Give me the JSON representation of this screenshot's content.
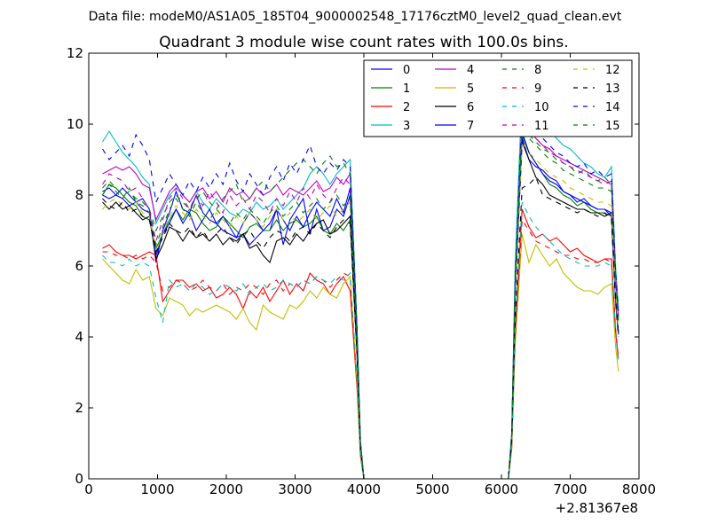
{
  "suptitle": "Data file: modeM0/AS1A05_185T04_9000002548_17176cztM0_level2_quad_clean.evt",
  "chart_data": {
    "type": "line",
    "title": "Quadrant 3 module wise count rates with 100.0s bins.",
    "xlabel": "",
    "ylabel": "",
    "x_offset_label": "+2.81367e8",
    "xlim": [
      0,
      8000
    ],
    "ylim": [
      0,
      12
    ],
    "xticks": [
      "0",
      "1000",
      "2000",
      "3000",
      "4000",
      "5000",
      "6000",
      "7000",
      "8000"
    ],
    "yticks": [
      "0",
      "2",
      "4",
      "6",
      "8",
      "10",
      "12"
    ],
    "grid": false,
    "legend_position": "top-right",
    "legend_columns": 4,
    "segments": [
      {
        "x_start": 200,
        "x_end": 3800
      },
      {
        "x_start": 6300,
        "x_end": 7600
      }
    ],
    "series": [
      {
        "name": "0",
        "color": "#0000ff",
        "dash": "solid",
        "seg1": [
          8.1,
          8.2,
          8.0,
          8.2,
          8.0,
          7.8,
          7.9,
          7.6,
          6.1,
          7.0,
          7.5,
          8.1,
          7.6,
          7.5,
          8.0,
          7.5,
          7.3,
          7.2,
          7.0,
          6.9,
          6.8,
          6.9,
          6.6,
          6.8,
          7.0,
          7.0,
          7.6,
          6.6,
          7.3,
          7.6,
          7.9,
          6.9,
          7.6,
          7.0,
          7.1,
          7.6,
          7.4,
          8.0
        ],
        "seg2": [
          9.5,
          9.0,
          8.8,
          8.7,
          8.5,
          8.4,
          8.1,
          8.0,
          7.8,
          7.9,
          7.7,
          7.6,
          7.6,
          7.4
        ]
      },
      {
        "name": "1",
        "color": "#008000",
        "dash": "solid",
        "seg1": [
          8.0,
          8.3,
          8.2,
          8.0,
          7.8,
          7.7,
          7.4,
          7.3,
          6.5,
          6.9,
          7.3,
          7.6,
          7.3,
          7.6,
          7.5,
          7.2,
          7.0,
          7.1,
          7.4,
          7.2,
          7.0,
          6.8,
          7.1,
          7.2,
          7.0,
          7.0,
          7.3,
          7.0,
          7.2,
          7.3,
          7.1,
          7.2,
          7.4,
          7.0,
          6.9,
          7.2,
          7.0,
          7.3
        ],
        "seg2": [
          9.8,
          9.2,
          8.9,
          8.6,
          8.3,
          8.2,
          8.0,
          7.9,
          7.7,
          7.8,
          7.6,
          7.5,
          7.5,
          7.4
        ]
      },
      {
        "name": "2",
        "color": "#ff0000",
        "dash": "solid",
        "seg1": [
          6.5,
          6.6,
          6.4,
          6.3,
          6.3,
          6.2,
          6.3,
          6.4,
          6.3,
          5.0,
          5.3,
          5.6,
          5.6,
          5.4,
          5.5,
          5.3,
          5.4,
          5.1,
          5.2,
          5.4,
          5.2,
          4.8,
          5.3,
          5.1,
          5.4,
          5.0,
          5.3,
          5.6,
          5.2,
          5.5,
          5.3,
          5.8,
          5.6,
          5.5,
          5.2,
          5.5,
          5.7,
          5.3
        ],
        "seg2": [
          7.6,
          7.1,
          6.8,
          6.9,
          6.7,
          6.8,
          6.6,
          6.4,
          6.5,
          6.3,
          6.2,
          6.1,
          6.2,
          6.2
        ]
      },
      {
        "name": "3",
        "color": "#00bfbf",
        "dash": "solid",
        "seg1": [
          9.5,
          9.8,
          9.5,
          9.2,
          9.0,
          8.8,
          8.5,
          8.3,
          7.2,
          7.6,
          8.0,
          8.2,
          8.0,
          7.8,
          8.1,
          7.8,
          7.6,
          7.9,
          7.7,
          7.5,
          7.4,
          7.6,
          7.5,
          7.8,
          7.6,
          7.7,
          7.9,
          7.6,
          7.8,
          8.0,
          8.2,
          8.6,
          8.8,
          8.6,
          8.3,
          8.6,
          8.8,
          9.0
        ],
        "seg2": [
          11.0,
          10.5,
          10.3,
          10.0,
          9.8,
          9.6,
          9.4,
          9.3,
          9.1,
          8.9,
          8.8,
          8.6,
          8.5,
          8.8
        ]
      },
      {
        "name": "4",
        "color": "#bf00bf",
        "dash": "solid",
        "seg1": [
          8.6,
          8.7,
          8.8,
          8.7,
          8.8,
          8.6,
          8.3,
          8.2,
          7.3,
          7.7,
          8.1,
          8.3,
          8.0,
          7.8,
          8.1,
          8.2,
          7.9,
          8.1,
          7.8,
          8.2,
          8.0,
          8.1,
          7.9,
          8.2,
          8.0,
          8.1,
          8.3,
          8.0,
          8.2,
          8.1,
          8.0,
          8.2,
          8.4,
          8.1,
          8.2,
          8.5,
          8.3,
          8.6
        ],
        "seg2": [
          10.2,
          9.8,
          9.6,
          9.4,
          9.3,
          9.1,
          9.0,
          8.9,
          8.8,
          8.7,
          8.6,
          8.5,
          8.4,
          8.3
        ]
      },
      {
        "name": "5",
        "color": "#bfbf00",
        "dash": "solid",
        "seg1": [
          6.2,
          6.0,
          5.8,
          5.6,
          5.5,
          5.9,
          5.6,
          5.7,
          4.8,
          4.6,
          5.1,
          5.0,
          4.9,
          4.6,
          4.8,
          4.7,
          4.8,
          4.9,
          4.8,
          4.7,
          4.5,
          4.8,
          4.4,
          4.2,
          4.9,
          4.7,
          4.6,
          4.5,
          4.9,
          4.8,
          5.0,
          5.3,
          5.1,
          5.4,
          5.2,
          5.1,
          5.5,
          5.7
        ],
        "seg2": [
          6.9,
          6.1,
          6.6,
          6.3,
          6.0,
          6.2,
          5.8,
          5.6,
          5.4,
          5.3,
          5.3,
          5.2,
          5.4,
          5.5
        ]
      },
      {
        "name": "6",
        "color": "#000000",
        "dash": "solid",
        "seg1": [
          7.8,
          7.6,
          7.8,
          7.6,
          7.7,
          7.5,
          7.3,
          7.4,
          6.2,
          6.6,
          7.1,
          7.0,
          6.7,
          7.0,
          6.8,
          6.9,
          6.7,
          6.9,
          6.6,
          6.8,
          6.7,
          6.9,
          6.5,
          6.6,
          6.3,
          6.1,
          6.7,
          6.8,
          6.6,
          6.9,
          6.7,
          7.0,
          7.2,
          7.3,
          6.9,
          7.0,
          7.2,
          7.4
        ],
        "seg2": [
          9.6,
          9.0,
          8.5,
          8.3,
          8.0,
          7.9,
          7.8,
          7.7,
          7.6,
          7.6,
          7.5,
          7.5,
          7.4,
          7.5
        ]
      },
      {
        "name": "7",
        "color": "#0000ff",
        "dash": "solid",
        "seg1": [
          8.0,
          7.9,
          8.0,
          7.9,
          7.7,
          7.8,
          7.6,
          7.5,
          6.3,
          6.9,
          7.2,
          7.6,
          7.2,
          7.5,
          7.0,
          7.3,
          7.6,
          7.2,
          7.4,
          7.1,
          6.8,
          7.2,
          7.5,
          7.3,
          7.0,
          7.2,
          7.6,
          7.3,
          7.0,
          7.4,
          7.1,
          7.5,
          7.8,
          7.6,
          7.4,
          7.9,
          7.5,
          8.2
        ],
        "seg2": [
          9.7,
          9.2,
          8.9,
          8.6,
          8.4,
          8.3,
          8.1,
          8.0,
          7.9,
          7.8,
          7.7,
          7.6,
          7.6,
          7.5
        ]
      },
      {
        "name": "8",
        "color": "#008000",
        "dash": "dashed",
        "seg1": [
          8.2,
          8.4,
          8.2,
          8.0,
          8.1,
          7.9,
          7.8,
          7.6,
          7.0,
          7.4,
          7.8,
          8.0,
          7.8,
          7.6,
          7.9,
          8.1,
          7.8,
          7.6,
          7.9,
          8.1,
          8.3,
          7.8,
          7.9,
          8.2,
          8.4,
          8.1,
          8.3,
          8.5,
          8.7,
          8.9,
          9.0,
          8.8,
          8.6,
          8.9,
          9.1,
          8.8,
          8.9,
          8.6
        ],
        "seg2": [
          10.0,
          9.7,
          9.5,
          9.3,
          9.2,
          9.0,
          8.9,
          8.8,
          8.6,
          8.7,
          8.5,
          8.4,
          8.5,
          8.3
        ]
      },
      {
        "name": "9",
        "color": "#ff0000",
        "dash": "dashed",
        "seg1": [
          6.4,
          6.4,
          6.3,
          6.3,
          6.2,
          6.3,
          6.2,
          6.3,
          6.1,
          5.3,
          5.4,
          5.6,
          5.5,
          5.3,
          5.4,
          5.6,
          5.4,
          5.3,
          5.5,
          5.2,
          5.4,
          5.3,
          5.5,
          5.4,
          5.2,
          5.5,
          5.6,
          5.3,
          5.5,
          5.4,
          5.6,
          5.5,
          5.7,
          5.6,
          5.4,
          5.6,
          5.8,
          5.7
        ],
        "seg2": [
          7.3,
          7.0,
          6.7,
          6.6,
          6.5,
          6.4,
          6.3,
          6.3,
          6.2,
          6.2,
          6.1,
          6.1,
          6.2,
          6.1
        ]
      },
      {
        "name": "10",
        "color": "#00bfbf",
        "dash": "dashed",
        "seg1": [
          6.3,
          6.1,
          6.1,
          6.0,
          6.2,
          6.0,
          6.1,
          6.0,
          5.1,
          4.4,
          5.6,
          5.4,
          5.5,
          5.3,
          5.5,
          5.4,
          5.2,
          5.3,
          5.5,
          5.4,
          5.3,
          5.5,
          5.2,
          5.4,
          5.5,
          5.3,
          5.4,
          5.6,
          5.5,
          5.4,
          5.6,
          5.5,
          5.7,
          5.6,
          5.5,
          5.7,
          5.6,
          5.8
        ],
        "seg2": [
          7.8,
          7.4,
          7.1,
          6.9,
          6.7,
          6.5,
          6.3,
          6.2,
          6.1,
          6.0,
          6.0,
          6.0,
          6.1,
          6.0
        ]
      },
      {
        "name": "11",
        "color": "#bf00bf",
        "dash": "dashed",
        "seg1": [
          8.3,
          8.6,
          8.5,
          8.4,
          8.1,
          8.2,
          7.9,
          7.6,
          6.7,
          7.3,
          7.9,
          8.2,
          7.9,
          7.6,
          8.0,
          7.7,
          8.1,
          7.8,
          7.5,
          8.0,
          7.7,
          7.9,
          7.6,
          8.0,
          7.8,
          7.5,
          7.9,
          7.7,
          8.1,
          7.8,
          8.2,
          7.9,
          8.3,
          8.0,
          7.8,
          8.2,
          8.5,
          8.3
        ],
        "seg2": [
          10.3,
          9.9,
          9.6,
          9.4,
          9.2,
          9.1,
          8.9,
          8.8,
          8.7,
          8.6,
          8.5,
          8.4,
          8.3,
          8.4
        ]
      },
      {
        "name": "12",
        "color": "#bfbf00",
        "dash": "dashed",
        "seg1": [
          7.6,
          7.8,
          7.9,
          7.7,
          7.6,
          7.8,
          7.5,
          7.4,
          6.4,
          6.9,
          7.4,
          7.7,
          7.5,
          7.3,
          7.6,
          7.4,
          7.2,
          7.5,
          7.3,
          7.1,
          7.4,
          7.2,
          7.5,
          7.3,
          7.1,
          7.4,
          7.6,
          7.3,
          7.5,
          7.2,
          7.4,
          7.6,
          7.3,
          7.5,
          7.7,
          7.4,
          7.6,
          7.8
        ],
        "seg2": [
          9.5,
          9.2,
          9.0,
          8.8,
          8.6,
          8.5,
          8.4,
          8.2,
          8.1,
          8.0,
          7.9,
          7.8,
          7.8,
          7.7
        ]
      },
      {
        "name": "13",
        "color": "#000000",
        "dash": "dashed",
        "seg1": [
          7.9,
          7.7,
          7.6,
          7.8,
          7.5,
          7.6,
          7.4,
          7.3,
          6.4,
          6.8,
          7.2,
          7.0,
          6.9,
          7.1,
          6.8,
          7.0,
          6.7,
          6.9,
          7.1,
          6.8,
          6.6,
          6.9,
          7.0,
          6.7,
          6.5,
          6.8,
          7.0,
          6.9,
          6.7,
          7.0,
          7.1,
          6.9,
          7.2,
          7.0,
          6.8,
          7.1,
          7.3,
          7.2
        ],
        "seg2": [
          8.2,
          8.3,
          8.5,
          8.0,
          7.9,
          7.8,
          7.7,
          7.6,
          7.5,
          7.6,
          7.5,
          7.4,
          7.5,
          7.3
        ]
      },
      {
        "name": "14",
        "color": "#0000ff",
        "dash": "dashed",
        "seg1": [
          9.3,
          9.0,
          9.2,
          9.4,
          9.1,
          9.7,
          9.4,
          9.0,
          7.8,
          8.2,
          8.6,
          8.3,
          8.0,
          8.4,
          8.1,
          8.5,
          8.2,
          8.6,
          8.3,
          8.9,
          8.4,
          8.1,
          8.6,
          8.3,
          8.0,
          8.5,
          8.8,
          8.4,
          8.9,
          8.6,
          9.0,
          9.4,
          8.8,
          8.6,
          8.9,
          8.7,
          9.0,
          8.8
        ],
        "seg2": [
          10.4,
          10.1,
          9.8,
          9.6,
          9.4,
          9.2,
          9.1,
          8.9,
          8.8,
          8.9,
          8.6,
          8.7,
          8.5,
          8.6
        ]
      },
      {
        "name": "15",
        "color": "#008000",
        "dash": "dashed",
        "seg1": [
          8.0,
          8.3,
          8.1,
          7.9,
          8.2,
          7.8,
          7.7,
          7.5,
          6.6,
          7.1,
          7.6,
          7.9,
          7.6,
          7.4,
          7.8,
          7.5,
          7.3,
          7.6,
          7.4,
          7.2,
          7.5,
          7.3,
          7.6,
          7.4,
          7.2,
          7.5,
          7.7,
          7.4,
          7.6,
          7.8,
          7.5,
          7.7,
          7.9,
          7.6,
          7.8,
          8.0,
          7.7,
          7.9
        ],
        "seg2": [
          10.0,
          9.6,
          9.4,
          9.2,
          9.0,
          8.9,
          8.7,
          8.6,
          8.5,
          8.4,
          8.3,
          8.2,
          8.2,
          8.1
        ]
      }
    ]
  }
}
